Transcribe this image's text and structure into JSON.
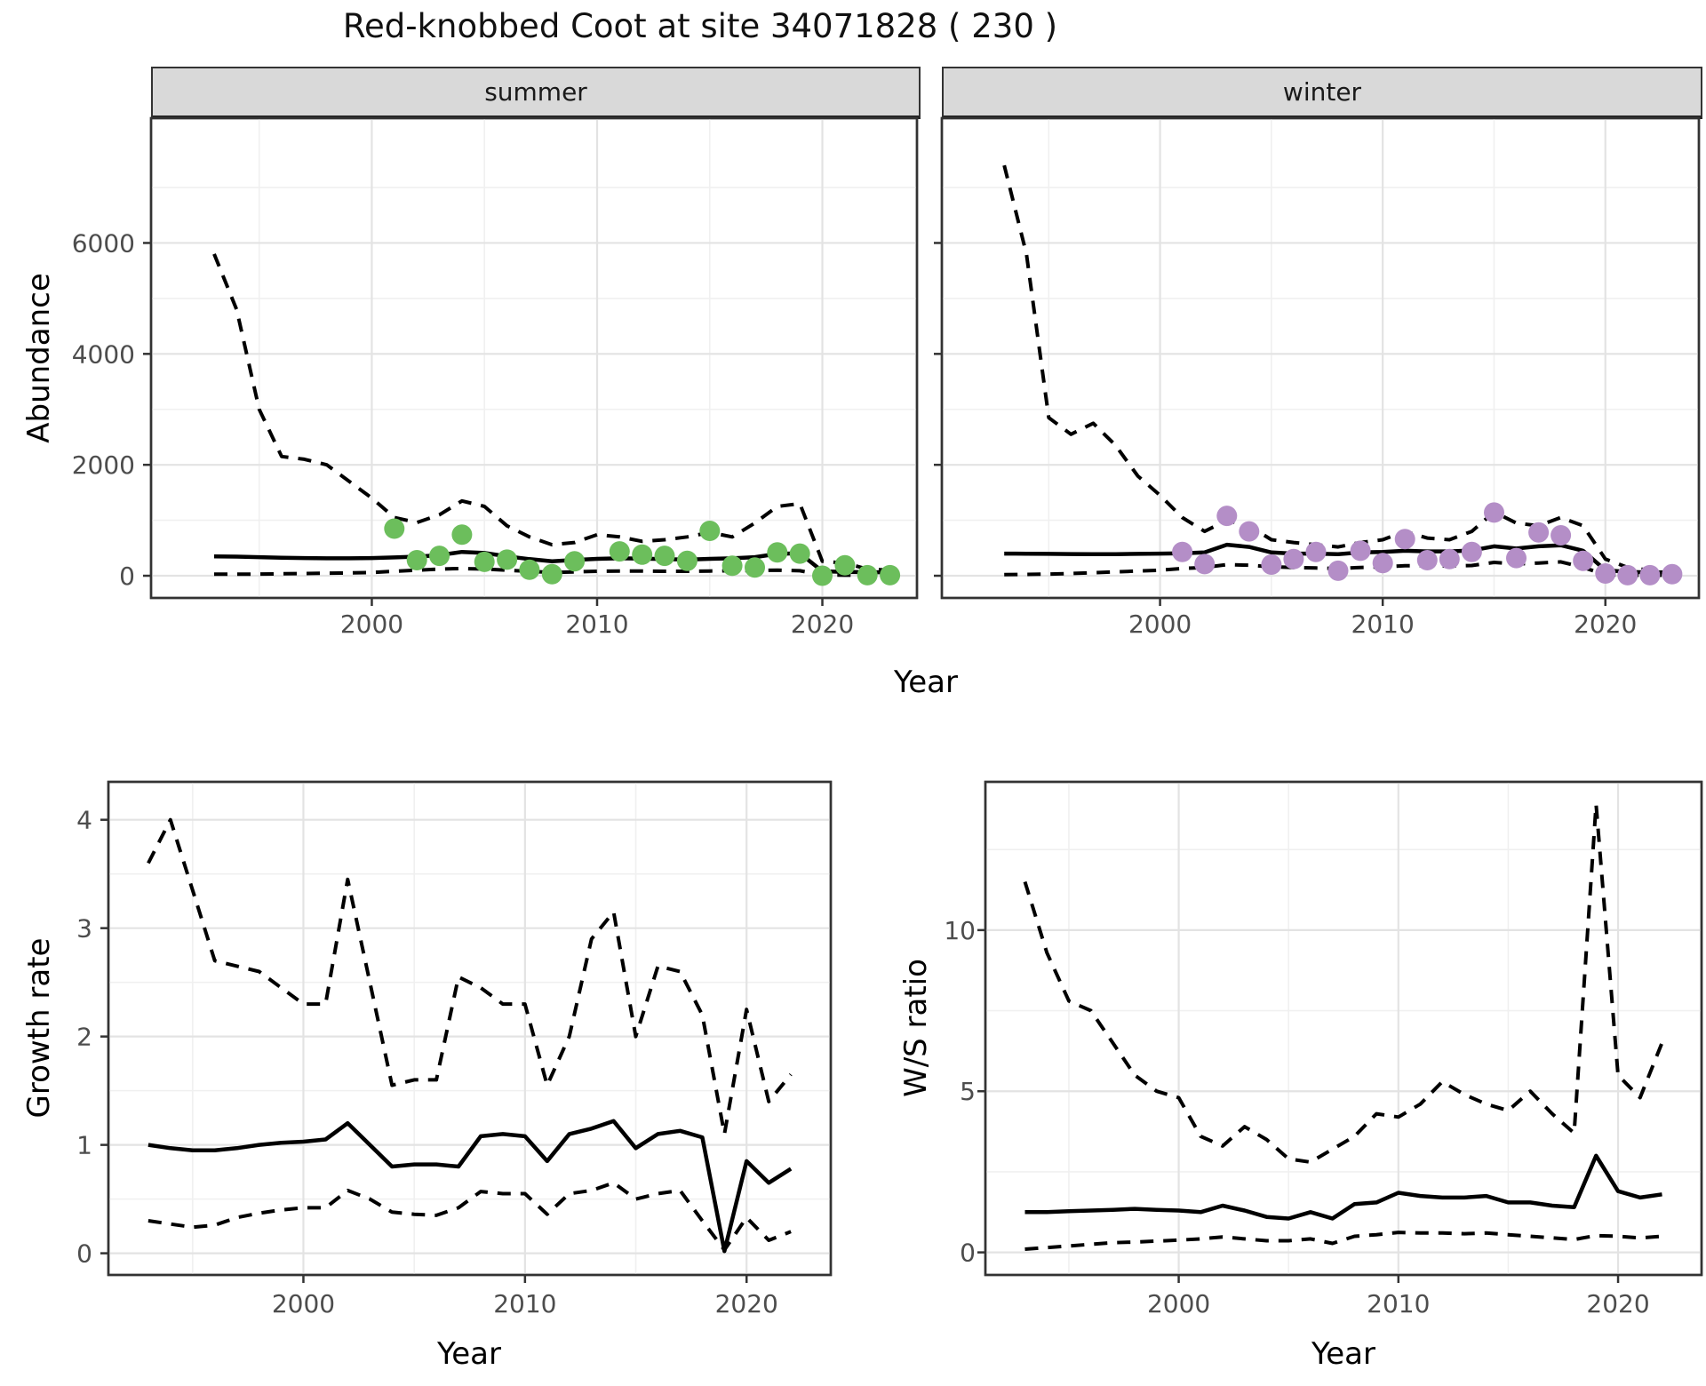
{
  "title": "Red-knobbed Coot at site 34071828 ( 230 )",
  "facets": {
    "summer_label": "summer",
    "winter_label": "winter"
  },
  "axis_titles": {
    "abundance": "Abundance",
    "year_top": "Year",
    "growth_rate": "Growth rate",
    "ws_ratio": "W/S ratio",
    "year_bottom_left": "Year",
    "year_bottom_right": "Year"
  },
  "colors": {
    "summer_point": "#6CBE5C",
    "winter_point": "#B48EC7",
    "line": "#000000",
    "grid_major": "#E3E3E3",
    "grid_minor": "#F0F0F0",
    "panel_border": "#333333",
    "strip_bg": "#D9D9D9",
    "tick_text": "#4D4D4D"
  },
  "chart_data": [
    {
      "id": "abundance-summer",
      "type": "line",
      "title_facet": "summer",
      "xlabel": "Year",
      "ylabel": "Abundance",
      "xlim": [
        1990.2,
        2024.2
      ],
      "ylim": [
        -400,
        8250
      ],
      "x_major": [
        2000,
        2010,
        2020
      ],
      "x_minor": [
        1995,
        2005,
        2015
      ],
      "y_major": [
        0,
        2000,
        4000,
        6000
      ],
      "y_minor": [
        1000,
        3000,
        5000,
        7000
      ],
      "show_y_tick_labels": true,
      "x": [
        1993,
        1994,
        1995,
        1996,
        1997,
        1998,
        1999,
        2000,
        2001,
        2002,
        2003,
        2004,
        2005,
        2006,
        2007,
        2008,
        2009,
        2010,
        2011,
        2012,
        2013,
        2014,
        2015,
        2016,
        2017,
        2018,
        2019,
        2020,
        2021,
        2022,
        2023
      ],
      "series": [
        {
          "name": "upper_95CI",
          "style": "dashed",
          "values": [
            5800,
            4800,
            3000,
            2150,
            2100,
            2000,
            1700,
            1400,
            1050,
            960,
            1100,
            1350,
            1250,
            900,
            700,
            560,
            600,
            740,
            700,
            620,
            650,
            700,
            780,
            700,
            950,
            1250,
            1300,
            260,
            230,
            120,
            100
          ]
        },
        {
          "name": "median",
          "style": "solid",
          "values": [
            350,
            345,
            335,
            325,
            320,
            315,
            315,
            320,
            330,
            345,
            370,
            430,
            410,
            350,
            300,
            260,
            285,
            305,
            315,
            310,
            300,
            290,
            305,
            315,
            335,
            395,
            405,
            80,
            70,
            65,
            60
          ]
        },
        {
          "name": "lower_95CI",
          "style": "dashed",
          "values": [
            30,
            30,
            30,
            35,
            40,
            45,
            50,
            60,
            80,
            100,
            120,
            130,
            120,
            100,
            80,
            60,
            70,
            80,
            85,
            85,
            80,
            80,
            85,
            90,
            95,
            100,
            90,
            15,
            10,
            8,
            8
          ]
        }
      ],
      "points": {
        "name": "observed_counts_summer",
        "color_key": "summer_point",
        "years": [
          2001,
          2002,
          2003,
          2004,
          2005,
          2006,
          2007,
          2008,
          2009,
          2011,
          2012,
          2013,
          2014,
          2015,
          2016,
          2017,
          2018,
          2019,
          2020,
          2021,
          2022,
          2023
        ],
        "values": [
          850,
          280,
          360,
          740,
          250,
          290,
          110,
          30,
          260,
          440,
          380,
          360,
          270,
          810,
          180,
          150,
          420,
          400,
          0,
          190,
          10,
          10
        ]
      }
    },
    {
      "id": "abundance-winter",
      "type": "line",
      "title_facet": "winter",
      "xlabel": "Year",
      "ylabel": "Abundance",
      "xlim": [
        1990.2,
        2024.2
      ],
      "ylim": [
        -400,
        8250
      ],
      "x_major": [
        2000,
        2010,
        2020
      ],
      "x_minor": [
        1995,
        2005,
        2015
      ],
      "y_major": [
        0,
        2000,
        4000,
        6000
      ],
      "y_minor": [
        1000,
        3000,
        5000,
        7000
      ],
      "show_y_tick_labels": false,
      "x": [
        1993,
        1994,
        1995,
        1996,
        1997,
        1998,
        1999,
        2000,
        2001,
        2002,
        2003,
        2004,
        2005,
        2006,
        2007,
        2008,
        2009,
        2010,
        2011,
        2012,
        2013,
        2014,
        2015,
        2016,
        2017,
        2018,
        2019,
        2020,
        2021,
        2022,
        2023
      ],
      "series": [
        {
          "name": "upper_95CI",
          "style": "dashed",
          "values": [
            7400,
            5800,
            2850,
            2550,
            2750,
            2350,
            1800,
            1450,
            1050,
            800,
            1000,
            900,
            650,
            600,
            560,
            520,
            600,
            650,
            800,
            680,
            650,
            800,
            1150,
            950,
            900,
            1050,
            900,
            300,
            150,
            100,
            100
          ]
        },
        {
          "name": "median",
          "style": "solid",
          "values": [
            400,
            398,
            395,
            392,
            390,
            390,
            395,
            400,
            405,
            420,
            560,
            520,
            420,
            400,
            400,
            390,
            420,
            430,
            450,
            440,
            440,
            455,
            530,
            490,
            530,
            550,
            450,
            100,
            70,
            60,
            60
          ]
        },
        {
          "name": "lower_95CI",
          "style": "dashed",
          "values": [
            20,
            25,
            30,
            40,
            55,
            70,
            85,
            100,
            130,
            150,
            200,
            190,
            160,
            150,
            140,
            130,
            150,
            160,
            180,
            180,
            175,
            185,
            240,
            210,
            230,
            250,
            150,
            20,
            10,
            8,
            8
          ]
        }
      ],
      "points": {
        "name": "observed_counts_winter",
        "color_key": "winter_point",
        "years": [
          2001,
          2002,
          2003,
          2004,
          2005,
          2006,
          2007,
          2008,
          2009,
          2010,
          2011,
          2012,
          2013,
          2014,
          2015,
          2016,
          2017,
          2018,
          2019,
          2020,
          2021,
          2022,
          2023
        ],
        "values": [
          430,
          210,
          1080,
          800,
          200,
          300,
          430,
          90,
          450,
          230,
          660,
          280,
          300,
          430,
          1140,
          320,
          780,
          730,
          270,
          40,
          10,
          10,
          30
        ]
      }
    },
    {
      "id": "growth-rate",
      "type": "line",
      "xlabel": "Year",
      "ylabel": "Growth rate",
      "xlim": [
        1991.2,
        2023.8
      ],
      "ylim": [
        -0.2,
        4.35
      ],
      "x_major": [
        2000,
        2010,
        2020
      ],
      "x_minor": [
        1995,
        2005,
        2015
      ],
      "y_major": [
        0,
        1,
        2,
        3,
        4
      ],
      "y_minor": [
        0.5,
        1.5,
        2.5,
        3.5
      ],
      "show_y_tick_labels": true,
      "x": [
        1993,
        1994,
        1995,
        1996,
        1997,
        1998,
        1999,
        2000,
        2001,
        2002,
        2003,
        2004,
        2005,
        2006,
        2007,
        2008,
        2009,
        2010,
        2011,
        2012,
        2013,
        2014,
        2015,
        2016,
        2017,
        2018,
        2019,
        2020,
        2021,
        2022
      ],
      "series": [
        {
          "name": "upper_95CI",
          "style": "dashed",
          "values": [
            3.6,
            4.0,
            3.35,
            2.7,
            2.65,
            2.6,
            2.45,
            2.3,
            2.3,
            3.45,
            2.5,
            1.55,
            1.6,
            1.6,
            2.55,
            2.45,
            2.3,
            2.3,
            1.55,
            2.0,
            2.9,
            3.15,
            2.0,
            2.65,
            2.6,
            2.2,
            1.1,
            2.25,
            1.4,
            1.65
          ]
        },
        {
          "name": "median",
          "style": "solid",
          "values": [
            1.0,
            0.97,
            0.95,
            0.95,
            0.97,
            1.0,
            1.02,
            1.03,
            1.05,
            1.2,
            1.0,
            0.8,
            0.82,
            0.82,
            0.8,
            1.08,
            1.1,
            1.08,
            0.85,
            1.1,
            1.15,
            1.22,
            0.97,
            1.1,
            1.13,
            1.07,
            0.02,
            0.85,
            0.65,
            0.78
          ]
        },
        {
          "name": "lower_95CI",
          "style": "dashed",
          "values": [
            0.3,
            0.27,
            0.24,
            0.26,
            0.33,
            0.37,
            0.4,
            0.42,
            0.42,
            0.58,
            0.5,
            0.38,
            0.36,
            0.35,
            0.42,
            0.57,
            0.55,
            0.55,
            0.36,
            0.55,
            0.58,
            0.65,
            0.5,
            0.55,
            0.58,
            0.3,
            0.03,
            0.33,
            0.12,
            0.2
          ]
        }
      ]
    },
    {
      "id": "ws-ratio",
      "type": "line",
      "xlabel": "Year",
      "ylabel": "W/S ratio",
      "xlim": [
        1991.2,
        2023.8
      ],
      "ylim": [
        -0.7,
        14.6
      ],
      "x_major": [
        2000,
        2010,
        2020
      ],
      "x_minor": [
        1995,
        2005,
        2015
      ],
      "y_major": [
        0,
        5,
        10
      ],
      "y_minor": [
        2.5,
        7.5,
        12.5
      ],
      "show_y_tick_labels": true,
      "x": [
        1993,
        1994,
        1995,
        1996,
        1997,
        1998,
        1999,
        2000,
        2001,
        2002,
        2003,
        2004,
        2005,
        2006,
        2007,
        2008,
        2009,
        2010,
        2011,
        2012,
        2013,
        2014,
        2015,
        2016,
        2017,
        2018,
        2019,
        2020,
        2021,
        2022
      ],
      "series": [
        {
          "name": "upper_95CI",
          "style": "dashed",
          "values": [
            11.5,
            9.3,
            7.8,
            7.5,
            6.5,
            5.5,
            5.0,
            4.8,
            3.6,
            3.3,
            3.9,
            3.5,
            2.9,
            2.8,
            3.2,
            3.6,
            4.3,
            4.2,
            4.6,
            5.3,
            4.9,
            4.6,
            4.4,
            5.0,
            4.3,
            3.7,
            13.9,
            5.5,
            4.8,
            6.5
          ]
        },
        {
          "name": "median",
          "style": "solid",
          "values": [
            1.25,
            1.25,
            1.28,
            1.3,
            1.32,
            1.35,
            1.32,
            1.3,
            1.25,
            1.45,
            1.3,
            1.1,
            1.05,
            1.25,
            1.05,
            1.5,
            1.55,
            1.85,
            1.75,
            1.7,
            1.7,
            1.75,
            1.55,
            1.55,
            1.45,
            1.4,
            3.0,
            1.9,
            1.7,
            1.8
          ]
        },
        {
          "name": "lower_95CI",
          "style": "dashed",
          "values": [
            0.1,
            0.15,
            0.2,
            0.25,
            0.3,
            0.32,
            0.35,
            0.38,
            0.42,
            0.48,
            0.42,
            0.36,
            0.36,
            0.42,
            0.28,
            0.5,
            0.55,
            0.62,
            0.6,
            0.6,
            0.58,
            0.6,
            0.55,
            0.5,
            0.45,
            0.4,
            0.52,
            0.5,
            0.45,
            0.5
          ]
        }
      ]
    }
  ]
}
